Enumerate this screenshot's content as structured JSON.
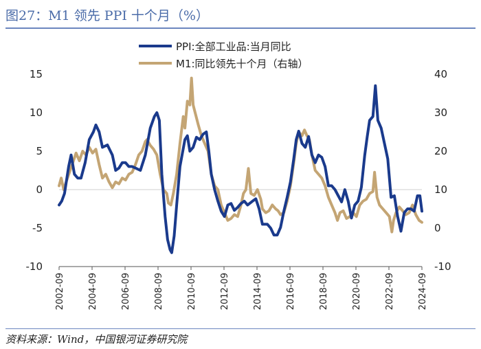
{
  "figure_title": "图27：M1 领先 PPI 十个月（%）",
  "source_note": "资料来源：Wind，中国银河证券研究院",
  "colors": {
    "ppi": "#1a3a8c",
    "m1": "#c4a574",
    "rule": "#6b86bf",
    "title": "#4a6ba8"
  },
  "chart_data": {
    "type": "line",
    "title": "M1 领先 PPI 十个月（%）",
    "legend_position": "top-center",
    "x_tick_labels": [
      "2002-09",
      "2004-09",
      "2006-09",
      "2008-09",
      "2010-09",
      "2012-09",
      "2014-09",
      "2016-09",
      "2018-09",
      "2020-09",
      "2022-09",
      "2024-09"
    ],
    "x_range": [
      2002.67,
      2024.67
    ],
    "y_left": {
      "min": -10,
      "max": 15,
      "ticks": [
        -10,
        -5,
        0,
        5,
        10,
        15
      ]
    },
    "y_right": {
      "min": -10,
      "max": 40,
      "ticks": [
        -10,
        0,
        10,
        20,
        30,
        40
      ]
    },
    "series": [
      {
        "name": "PPI:全部工业品:当月同比",
        "axis": "left",
        "points": [
          [
            2002.67,
            -2.0
          ],
          [
            2002.83,
            -1.5
          ],
          [
            2003.0,
            -0.5
          ],
          [
            2003.25,
            3.0
          ],
          [
            2003.4,
            4.5
          ],
          [
            2003.6,
            2.0
          ],
          [
            2003.8,
            1.5
          ],
          [
            2004.0,
            1.5
          ],
          [
            2004.25,
            3.5
          ],
          [
            2004.5,
            6.5
          ],
          [
            2004.75,
            7.5
          ],
          [
            2004.9,
            8.4
          ],
          [
            2005.1,
            7.5
          ],
          [
            2005.3,
            5.5
          ],
          [
            2005.6,
            5.8
          ],
          [
            2005.9,
            4.5
          ],
          [
            2006.1,
            2.5
          ],
          [
            2006.3,
            2.8
          ],
          [
            2006.5,
            3.5
          ],
          [
            2006.7,
            3.5
          ],
          [
            2006.9,
            3.0
          ],
          [
            2007.1,
            3.0
          ],
          [
            2007.3,
            2.8
          ],
          [
            2007.6,
            2.5
          ],
          [
            2007.9,
            4.5
          ],
          [
            2008.2,
            8.0
          ],
          [
            2008.45,
            9.5
          ],
          [
            2008.6,
            10.0
          ],
          [
            2008.75,
            9.0
          ],
          [
            2008.9,
            2.0
          ],
          [
            2009.1,
            -3.5
          ],
          [
            2009.25,
            -6.5
          ],
          [
            2009.4,
            -7.8
          ],
          [
            2009.5,
            -8.2
          ],
          [
            2009.65,
            -6.0
          ],
          [
            2009.8,
            -2.0
          ],
          [
            2010.0,
            3.0
          ],
          [
            2010.3,
            6.5
          ],
          [
            2010.45,
            7.0
          ],
          [
            2010.6,
            5.0
          ],
          [
            2010.8,
            5.5
          ],
          [
            2011.0,
            6.8
          ],
          [
            2011.2,
            6.5
          ],
          [
            2011.4,
            7.2
          ],
          [
            2011.6,
            7.5
          ],
          [
            2011.75,
            5.0
          ],
          [
            2011.9,
            2.0
          ],
          [
            2012.1,
            0.0
          ],
          [
            2012.3,
            -1.5
          ],
          [
            2012.5,
            -2.8
          ],
          [
            2012.7,
            -3.5
          ],
          [
            2012.9,
            -2.0
          ],
          [
            2013.1,
            -1.8
          ],
          [
            2013.3,
            -2.7
          ],
          [
            2013.5,
            -2.3
          ],
          [
            2013.7,
            -1.8
          ],
          [
            2013.9,
            -1.5
          ],
          [
            2014.1,
            -2.0
          ],
          [
            2014.4,
            -1.5
          ],
          [
            2014.6,
            -1.2
          ],
          [
            2014.8,
            -2.5
          ],
          [
            2015.0,
            -4.5
          ],
          [
            2015.3,
            -4.5
          ],
          [
            2015.5,
            -5.0
          ],
          [
            2015.7,
            -5.9
          ],
          [
            2015.9,
            -5.9
          ],
          [
            2016.1,
            -4.9
          ],
          [
            2016.3,
            -2.8
          ],
          [
            2016.5,
            -1.0
          ],
          [
            2016.7,
            1.0
          ],
          [
            2016.9,
            4.0
          ],
          [
            2017.05,
            6.5
          ],
          [
            2017.2,
            7.6
          ],
          [
            2017.4,
            6.0
          ],
          [
            2017.6,
            5.5
          ],
          [
            2017.8,
            6.9
          ],
          [
            2018.0,
            4.5
          ],
          [
            2018.2,
            3.5
          ],
          [
            2018.4,
            4.5
          ],
          [
            2018.6,
            4.2
          ],
          [
            2018.8,
            3.0
          ],
          [
            2019.0,
            0.5
          ],
          [
            2019.2,
            0.5
          ],
          [
            2019.4,
            0.0
          ],
          [
            2019.6,
            -0.8
          ],
          [
            2019.8,
            -1.6
          ],
          [
            2020.0,
            0.0
          ],
          [
            2020.2,
            -1.5
          ],
          [
            2020.4,
            -3.7
          ],
          [
            2020.6,
            -2.0
          ],
          [
            2020.8,
            -1.5
          ],
          [
            2021.0,
            0.3
          ],
          [
            2021.2,
            4.4
          ],
          [
            2021.35,
            6.8
          ],
          [
            2021.5,
            9.0
          ],
          [
            2021.7,
            9.5
          ],
          [
            2021.85,
            13.5
          ],
          [
            2022.0,
            9.0
          ],
          [
            2022.2,
            8.0
          ],
          [
            2022.4,
            6.0
          ],
          [
            2022.6,
            4.0
          ],
          [
            2022.8,
            -1.0
          ],
          [
            2023.0,
            -0.8
          ],
          [
            2023.2,
            -3.5
          ],
          [
            2023.4,
            -5.4
          ],
          [
            2023.6,
            -3.0
          ],
          [
            2023.8,
            -2.5
          ],
          [
            2024.0,
            -2.5
          ],
          [
            2024.2,
            -2.8
          ],
          [
            2024.4,
            -0.8
          ],
          [
            2024.55,
            -0.8
          ],
          [
            2024.67,
            -2.8
          ]
        ]
      },
      {
        "name": "M1:同比领先十个月（右轴）",
        "axis": "right",
        "points": [
          [
            2002.67,
            11.0
          ],
          [
            2002.8,
            13.0
          ],
          [
            2002.95,
            10.0
          ],
          [
            2003.1,
            12.0
          ],
          [
            2003.3,
            14.5
          ],
          [
            2003.5,
            17.0
          ],
          [
            2003.7,
            19.5
          ],
          [
            2003.9,
            17.5
          ],
          [
            2004.1,
            20.0
          ],
          [
            2004.3,
            19.0
          ],
          [
            2004.5,
            21.0
          ],
          [
            2004.7,
            19.5
          ],
          [
            2004.9,
            20.5
          ],
          [
            2005.1,
            16.5
          ],
          [
            2005.3,
            13.0
          ],
          [
            2005.5,
            14.0
          ],
          [
            2005.7,
            12.0
          ],
          [
            2005.9,
            10.5
          ],
          [
            2006.1,
            12.0
          ],
          [
            2006.3,
            11.5
          ],
          [
            2006.5,
            13.0
          ],
          [
            2006.7,
            12.5
          ],
          [
            2006.9,
            14.0
          ],
          [
            2007.1,
            14.5
          ],
          [
            2007.3,
            16.5
          ],
          [
            2007.5,
            19.0
          ],
          [
            2007.7,
            20.0
          ],
          [
            2007.9,
            22.5
          ],
          [
            2008.0,
            23.0
          ],
          [
            2008.2,
            21.5
          ],
          [
            2008.4,
            20.5
          ],
          [
            2008.6,
            19.0
          ],
          [
            2008.8,
            14.0
          ],
          [
            2009.0,
            10.0
          ],
          [
            2009.2,
            9.0
          ],
          [
            2009.3,
            6.5
          ],
          [
            2009.45,
            6.0
          ],
          [
            2009.6,
            9.0
          ],
          [
            2009.8,
            14.0
          ],
          [
            2010.0,
            22.0
          ],
          [
            2010.2,
            29.0
          ],
          [
            2010.3,
            26.0
          ],
          [
            2010.45,
            33.0
          ],
          [
            2010.6,
            32.0
          ],
          [
            2010.7,
            39.0
          ],
          [
            2010.8,
            32.0
          ],
          [
            2010.95,
            29.5
          ],
          [
            2011.1,
            27.0
          ],
          [
            2011.3,
            24.0
          ],
          [
            2011.5,
            22.0
          ],
          [
            2011.7,
            20.0
          ],
          [
            2011.9,
            14.0
          ],
          [
            2012.1,
            11.0
          ],
          [
            2012.3,
            10.0
          ],
          [
            2012.5,
            6.0
          ],
          [
            2012.7,
            4.0
          ],
          [
            2012.9,
            2.0
          ],
          [
            2013.1,
            2.5
          ],
          [
            2013.3,
            3.5
          ],
          [
            2013.5,
            3.0
          ],
          [
            2013.7,
            6.0
          ],
          [
            2013.85,
            9.0
          ],
          [
            2014.0,
            10.0
          ],
          [
            2014.15,
            15.5
          ],
          [
            2014.3,
            9.0
          ],
          [
            2014.5,
            8.5
          ],
          [
            2014.7,
            10.0
          ],
          [
            2014.9,
            7.5
          ],
          [
            2015.0,
            5.0
          ],
          [
            2015.2,
            4.0
          ],
          [
            2015.4,
            4.5
          ],
          [
            2015.6,
            6.0
          ],
          [
            2015.8,
            5.0
          ],
          [
            2015.95,
            4.5
          ],
          [
            2016.1,
            3.5
          ],
          [
            2016.3,
            4.0
          ],
          [
            2016.5,
            7.0
          ],
          [
            2016.7,
            11.0
          ],
          [
            2016.9,
            17.0
          ],
          [
            2017.05,
            22.0
          ],
          [
            2017.2,
            25.0
          ],
          [
            2017.4,
            24.0
          ],
          [
            2017.55,
            25.5
          ],
          [
            2017.7,
            24.0
          ],
          [
            2017.85,
            23.0
          ],
          [
            2018.0,
            19.0
          ],
          [
            2018.2,
            15.0
          ],
          [
            2018.4,
            14.0
          ],
          [
            2018.6,
            13.0
          ],
          [
            2018.8,
            11.0
          ],
          [
            2019.0,
            8.0
          ],
          [
            2019.2,
            6.0
          ],
          [
            2019.4,
            4.0
          ],
          [
            2019.55,
            2.0
          ],
          [
            2019.7,
            4.0
          ],
          [
            2019.9,
            4.5
          ],
          [
            2020.1,
            2.5
          ],
          [
            2020.3,
            3.0
          ],
          [
            2020.5,
            4.0
          ],
          [
            2020.7,
            3.0
          ],
          [
            2020.9,
            6.0
          ],
          [
            2021.1,
            7.0
          ],
          [
            2021.3,
            7.5
          ],
          [
            2021.5,
            9.0
          ],
          [
            2021.7,
            9.5
          ],
          [
            2021.8,
            14.5
          ],
          [
            2021.95,
            8.0
          ],
          [
            2022.1,
            6.0
          ],
          [
            2022.3,
            5.0
          ],
          [
            2022.5,
            4.0
          ],
          [
            2022.7,
            3.0
          ],
          [
            2022.85,
            -1.0
          ],
          [
            2022.95,
            2.0
          ],
          [
            2023.1,
            4.0
          ],
          [
            2023.3,
            5.5
          ],
          [
            2023.5,
            4.5
          ],
          [
            2023.7,
            3.5
          ],
          [
            2023.9,
            4.0
          ],
          [
            2024.1,
            6.0
          ],
          [
            2024.3,
            3.5
          ],
          [
            2024.5,
            2.0
          ],
          [
            2024.67,
            1.5
          ]
        ]
      }
    ]
  }
}
